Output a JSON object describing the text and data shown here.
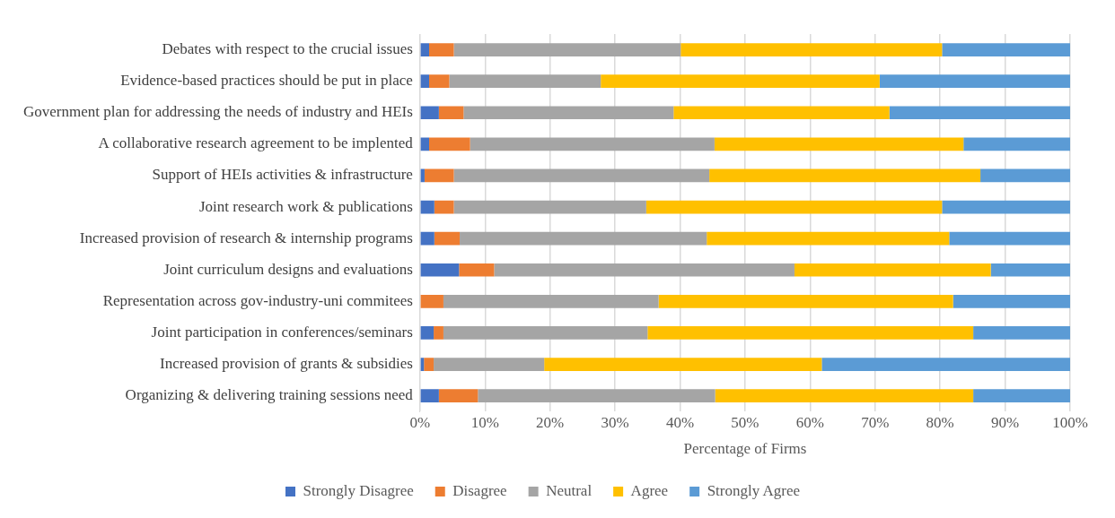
{
  "chart_data": {
    "type": "bar",
    "orientation": "horizontal",
    "stacked": true,
    "xlabel": "Percentage of Firms",
    "categories": [
      "Debates with respect to the crucial issues",
      "Evidence-based practices should be put in place",
      "Government plan for addressing the needs of industry and HEIs",
      "A collaborative research agreement to be implented",
      "Support of HEIs activities & infrastructure",
      "Joint research work & publications",
      "Increased provision of research & internship programs",
      "Joint curriculum designs and evaluations",
      "Representation across gov-industry-uni commitees",
      "Joint participation in conferences/seminars",
      "Increased provision of grants & subsidies",
      "Organizing & delivering training sessions need"
    ],
    "series": [
      {
        "name": "Strongly Disagree",
        "color": "#4472c4",
        "values": [
          1.4,
          1.4,
          2.9,
          1.4,
          0.7,
          2.2,
          2.2,
          6.0,
          0,
          2.1,
          0.6,
          2.9
        ]
      },
      {
        "name": "Disagree",
        "color": "#ed7d31",
        "values": [
          3.8,
          3.1,
          3.8,
          6.3,
          4.5,
          3.0,
          3.9,
          5.4,
          3.6,
          1.5,
          1.5,
          6.0
        ]
      },
      {
        "name": "Neutral",
        "color": "#a5a5a5",
        "values": [
          34.9,
          23.3,
          32.3,
          37.6,
          39.3,
          29.6,
          38.0,
          46.2,
          33.1,
          31.4,
          17.0,
          36.5
        ]
      },
      {
        "name": "Agree",
        "color": "#ffc000",
        "values": [
          40.2,
          42.9,
          33.2,
          38.3,
          41.7,
          45.5,
          37.3,
          30.2,
          45.3,
          50.1,
          42.7,
          39.7
        ]
      },
      {
        "name": "Strongly Agree",
        "color": "#5b9bd5",
        "values": [
          19.7,
          29.3,
          27.8,
          16.4,
          13.8,
          19.7,
          18.6,
          12.2,
          18.0,
          14.9,
          38.2,
          14.9
        ]
      }
    ],
    "xlim": [
      0,
      100
    ],
    "xticks": [
      {
        "value": 0,
        "label": "0%"
      },
      {
        "value": 10,
        "label": "10%"
      },
      {
        "value": 20,
        "label": "20%"
      },
      {
        "value": 30,
        "label": "30%"
      },
      {
        "value": 40,
        "label": "40%"
      },
      {
        "value": 50,
        "label": "50%"
      },
      {
        "value": 60,
        "label": "60%"
      },
      {
        "value": 70,
        "label": "70%"
      },
      {
        "value": 80,
        "label": "80%"
      },
      {
        "value": 90,
        "label": "90%"
      },
      {
        "value": 100,
        "label": "100%"
      }
    ],
    "grid": "x",
    "legend": "bottom"
  }
}
